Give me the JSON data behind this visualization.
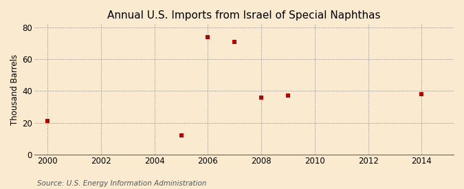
{
  "title": "Annual U.S. Imports from Israel of Special Naphthas",
  "ylabel": "Thousand Barrels",
  "source": "Source: U.S. Energy Information Administration",
  "x_data": [
    2000,
    2005,
    2006,
    2007,
    2008,
    2009,
    2014
  ],
  "y_data": [
    21,
    12,
    74,
    71,
    36,
    37,
    38
  ],
  "xlim": [
    1999.5,
    2015.2
  ],
  "ylim": [
    0,
    82
  ],
  "yticks": [
    0,
    20,
    40,
    60,
    80
  ],
  "xticks": [
    2000,
    2002,
    2004,
    2006,
    2008,
    2010,
    2012,
    2014
  ],
  "marker_color": "#bb0000",
  "marker_style": "s",
  "marker_size": 4,
  "background_color": "#faebd0",
  "grid_color": "#999999",
  "title_fontsize": 11,
  "axis_fontsize": 8.5,
  "source_fontsize": 7.5
}
